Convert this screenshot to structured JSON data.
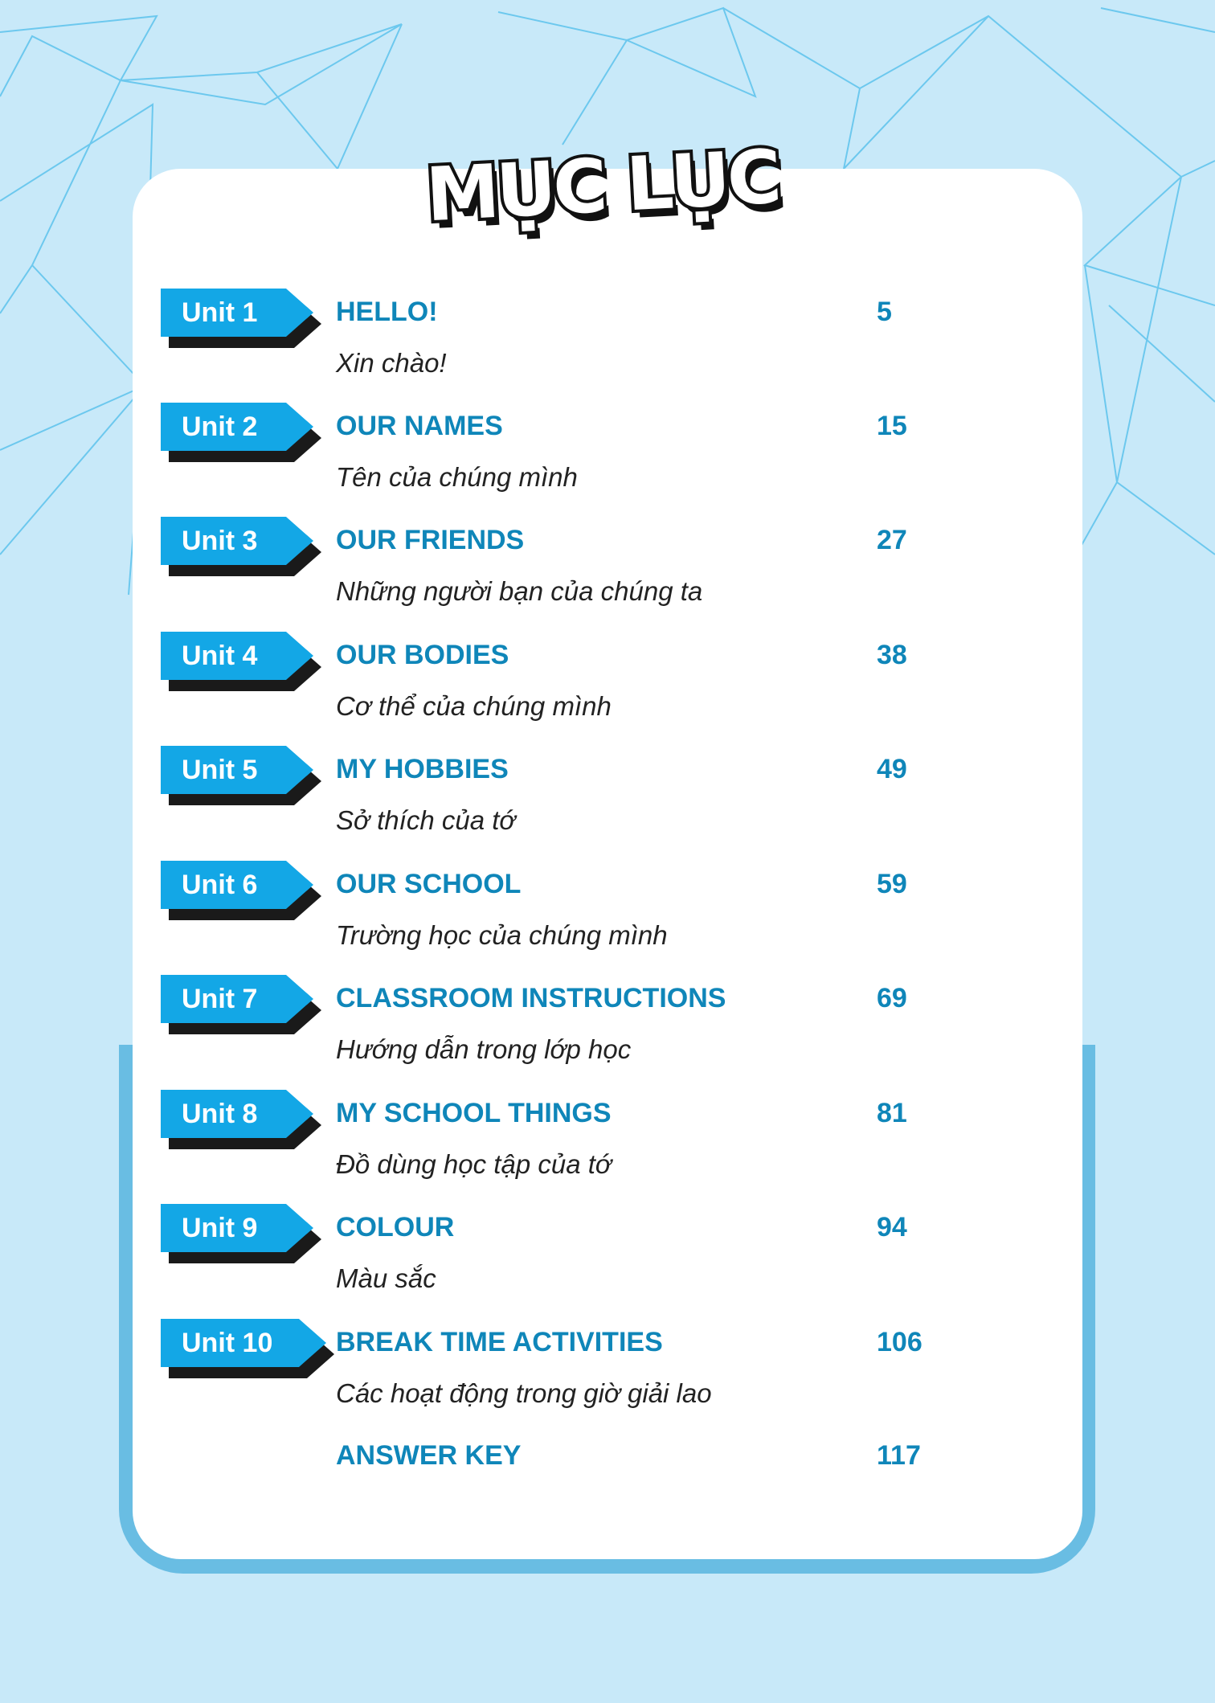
{
  "title": "MỤC LỤC",
  "colors": {
    "background": "#c8e9f9",
    "badge": "#13a7e6",
    "heading": "#0f86b9",
    "frame": "#69bde3"
  },
  "entries": [
    {
      "unit": "Unit 1",
      "title": "HELLO!",
      "subtitle": "Xin chào!",
      "page": "5"
    },
    {
      "unit": "Unit 2",
      "title": "OUR NAMES",
      "subtitle": "Tên của chúng mình",
      "page": "15"
    },
    {
      "unit": "Unit 3",
      "title": "OUR FRIENDS",
      "subtitle": "Những người bạn của chúng ta",
      "page": "27"
    },
    {
      "unit": "Unit 4",
      "title": "OUR BODIES",
      "subtitle": "Cơ thể của chúng mình",
      "page": "38"
    },
    {
      "unit": "Unit 5",
      "title": "MY HOBBIES",
      "subtitle": "Sở thích của tớ",
      "page": "49"
    },
    {
      "unit": "Unit 6",
      "title": "OUR SCHOOL",
      "subtitle": "Trường học của chúng mình",
      "page": "59"
    },
    {
      "unit": "Unit 7",
      "title": "CLASSROOM INSTRUCTIONS",
      "subtitle": "Hướng dẫn trong lớp học",
      "page": "69"
    },
    {
      "unit": "Unit 8",
      "title": "MY SCHOOL THINGS",
      "subtitle": "Đồ dùng học tập của tớ",
      "page": "81"
    },
    {
      "unit": "Unit 9",
      "title": "COLOUR",
      "subtitle": "Màu sắc",
      "page": "94"
    },
    {
      "unit": "Unit 10",
      "title": "BREAK TIME ACTIVITIES",
      "subtitle": "Các hoạt động trong giờ giải lao",
      "page": "106"
    }
  ],
  "answer_key": {
    "title": "ANSWER KEY",
    "page": "117"
  }
}
